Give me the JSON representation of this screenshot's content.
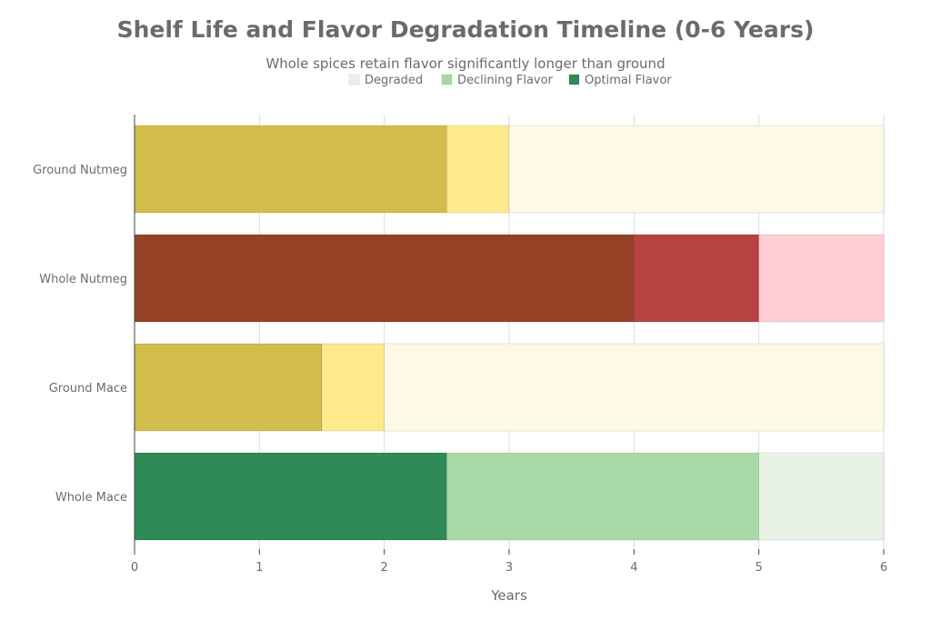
{
  "chart_data": {
    "type": "bar",
    "orientation": "horizontal",
    "stacked": true,
    "title": "Shelf Life and Flavor Degradation Timeline (0-6 Years)",
    "subtitle": "Whole spices retain flavor significantly longer than ground",
    "xlabel": "Years",
    "ylabel": "",
    "xlim": [
      0,
      6
    ],
    "x_ticks": [
      0,
      1,
      2,
      3,
      4,
      5,
      6
    ],
    "grid": true,
    "legend_position": "top-center",
    "legend": [
      {
        "name": "Degraded",
        "color": "#e8f3e6"
      },
      {
        "name": "Declining Flavor",
        "color": "#a8d8a6"
      },
      {
        "name": "Optimal Flavor",
        "color": "#2e8b57"
      }
    ],
    "categories": [
      "Ground Nutmeg",
      "Whole Nutmeg",
      "Ground Mace",
      "Whole Mace"
    ],
    "bars": [
      {
        "category": "Ground Nutmeg",
        "segments": [
          {
            "stage": "Optimal Flavor",
            "start": 0,
            "end": 2.5,
            "color": "#d4bc4c"
          },
          {
            "stage": "Declining Flavor",
            "start": 2.5,
            "end": 3,
            "color": "#fee98d"
          },
          {
            "stage": "Degraded",
            "start": 3,
            "end": 6,
            "color": "#fef9e7"
          }
        ]
      },
      {
        "category": "Whole Nutmeg",
        "segments": [
          {
            "stage": "Optimal Flavor",
            "start": 0,
            "end": 4,
            "color": "#954126"
          },
          {
            "stage": "Declining Flavor",
            "start": 4,
            "end": 5,
            "color": "#b84141"
          },
          {
            "stage": "Degraded",
            "start": 5,
            "end": 6,
            "color": "#ffcdd4"
          }
        ]
      },
      {
        "category": "Ground Mace",
        "segments": [
          {
            "stage": "Optimal Flavor",
            "start": 0,
            "end": 1.5,
            "color": "#d4bc4c"
          },
          {
            "stage": "Declining Flavor",
            "start": 1.5,
            "end": 2,
            "color": "#fee98d"
          },
          {
            "stage": "Degraded",
            "start": 2,
            "end": 6,
            "color": "#fef9e7"
          }
        ]
      },
      {
        "category": "Whole Mace",
        "segments": [
          {
            "stage": "Optimal Flavor",
            "start": 0,
            "end": 2.5,
            "color": "#2e8b57"
          },
          {
            "stage": "Declining Flavor",
            "start": 2.5,
            "end": 5,
            "color": "#a8d8a6"
          },
          {
            "stage": "Degraded",
            "start": 5,
            "end": 6,
            "color": "#e8f3e6"
          }
        ]
      }
    ]
  }
}
